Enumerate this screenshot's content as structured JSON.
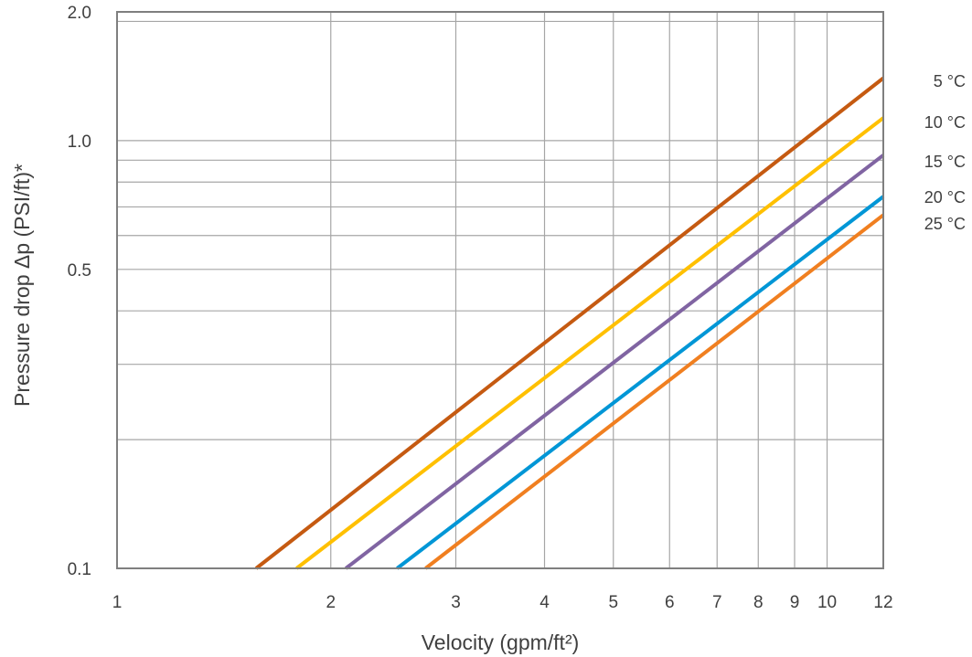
{
  "chart_data": {
    "type": "line",
    "title": "",
    "xlabel": "Velocity (gpm/ft²)",
    "ylabel": "Pressure drop Δp (PSI/ft)*",
    "x_scale": "log",
    "y_scale": "log",
    "xlim": [
      1,
      12
    ],
    "ylim": [
      0.1,
      2.0
    ],
    "grid": true,
    "x_ticks": [
      {
        "value": 1,
        "label": "1"
      },
      {
        "value": 2,
        "label": "2"
      },
      {
        "value": 3,
        "label": "3"
      },
      {
        "value": 4,
        "label": "4"
      },
      {
        "value": 5,
        "label": "5"
      },
      {
        "value": 6,
        "label": "6"
      },
      {
        "value": 7,
        "label": "7"
      },
      {
        "value": 8,
        "label": "8"
      },
      {
        "value": 9,
        "label": "9"
      },
      {
        "value": 10,
        "label": "10"
      },
      {
        "value": 12,
        "label": "12"
      }
    ],
    "y_ticks": [
      {
        "value": 0.1,
        "label": "0.1"
      },
      {
        "value": 0.5,
        "label": "0.5"
      },
      {
        "value": 1.0,
        "label": "1.0"
      },
      {
        "value": 2.0,
        "label": "2.0"
      }
    ],
    "y_gridlines": [
      0.2,
      0.3,
      0.4,
      0.5,
      0.6,
      0.7,
      0.8,
      0.9,
      1.0
    ],
    "series": [
      {
        "name": "5 °C",
        "color": "#c55a11",
        "points": [
          [
            1.57,
            0.1
          ],
          [
            12,
            1.4
          ]
        ]
      },
      {
        "name": "10 °C",
        "color": "#ffc000",
        "points": [
          [
            1.79,
            0.1
          ],
          [
            12,
            1.13
          ]
        ]
      },
      {
        "name": "15 °C",
        "color": "#8064a2",
        "points": [
          [
            2.1,
            0.1
          ],
          [
            12,
            0.925
          ]
        ]
      },
      {
        "name": "20 °C",
        "color": "#0096d6",
        "points": [
          [
            2.48,
            0.1
          ],
          [
            12,
            0.74
          ]
        ]
      },
      {
        "name": "25 °C",
        "color": "#f07f20",
        "points": [
          [
            2.72,
            0.1
          ],
          [
            12,
            0.67
          ]
        ]
      }
    ]
  }
}
